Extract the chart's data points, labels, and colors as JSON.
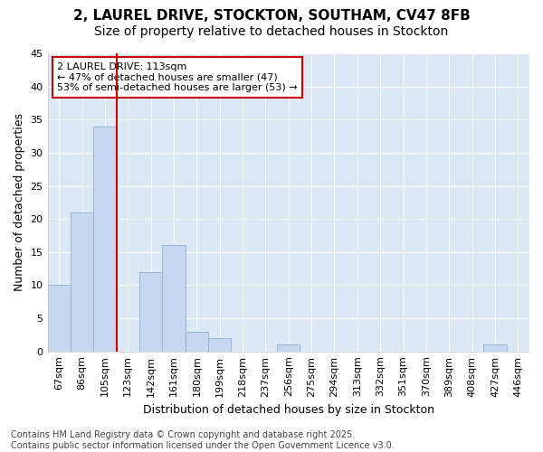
{
  "title1": "2, LAUREL DRIVE, STOCKTON, SOUTHAM, CV47 8FB",
  "title2": "Size of property relative to detached houses in Stockton",
  "xlabel": "Distribution of detached houses by size in Stockton",
  "ylabel": "Number of detached properties",
  "bar_labels": [
    "67sqm",
    "86sqm",
    "105sqm",
    "123sqm",
    "142sqm",
    "161sqm",
    "180sqm",
    "199sqm",
    "218sqm",
    "237sqm",
    "256sqm",
    "275sqm",
    "294sqm",
    "313sqm",
    "332sqm",
    "351sqm",
    "370sqm",
    "389sqm",
    "408sqm",
    "427sqm",
    "446sqm"
  ],
  "bar_values": [
    10,
    21,
    34,
    0,
    12,
    16,
    3,
    2,
    0,
    0,
    1,
    0,
    0,
    0,
    0,
    0,
    0,
    0,
    0,
    1,
    0
  ],
  "bar_color": "#c5d8f0",
  "bar_edge_color": "#8ab0d8",
  "vline_x": 2.5,
  "vline_color": "#cc0000",
  "annotation_title": "2 LAUREL DRIVE: 113sqm",
  "annotation_line2": "← 47% of detached houses are smaller (47)",
  "annotation_line3": "53% of semi-detached houses are larger (53) →",
  "annotation_box_color": "#ffffff",
  "annotation_box_edge": "#cc0000",
  "ylim": [
    0,
    45
  ],
  "yticks": [
    0,
    5,
    10,
    15,
    20,
    25,
    30,
    35,
    40,
    45
  ],
  "fig_bg_color": "#ffffff",
  "plot_bg_color": "#dce8f5",
  "footer": "Contains HM Land Registry data © Crown copyright and database right 2025.\nContains public sector information licensed under the Open Government Licence v3.0.",
  "grid_color": "#ffffff",
  "title_fontsize": 11,
  "subtitle_fontsize": 10,
  "axis_label_fontsize": 9,
  "tick_fontsize": 8,
  "footer_fontsize": 7,
  "annotation_fontsize": 8
}
